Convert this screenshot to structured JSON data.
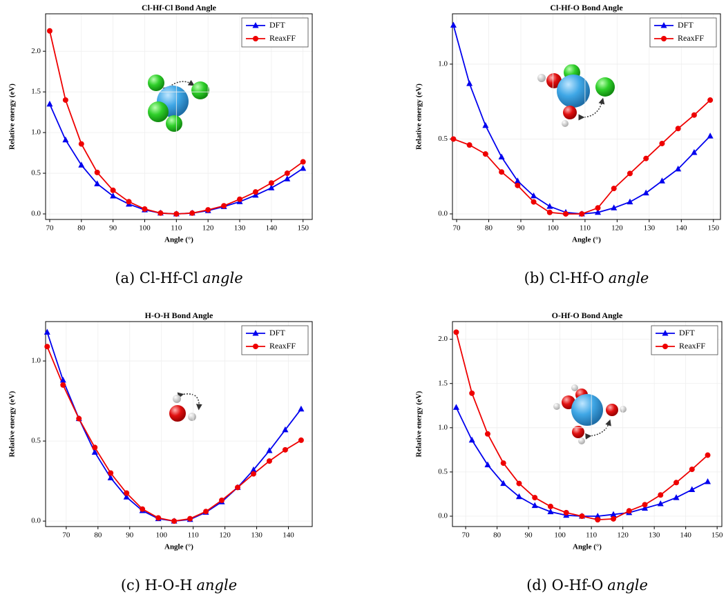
{
  "chart_data": [
    {
      "type": "line",
      "title": "Cl-Hf-Cl Bond Angle",
      "x_label": "Angle (°)",
      "y_label": "Relative energy (eV)",
      "caption": "(a) Cl-Hf-Cl",
      "caption_emphasis": "angle",
      "x": [
        70,
        75,
        80,
        85,
        90,
        95,
        100,
        105,
        110,
        115,
        120,
        125,
        130,
        135,
        140,
        145,
        150
      ],
      "series": [
        {
          "name": "DFT",
          "color": "#0000ee",
          "marker": "triangle",
          "values": [
            1.35,
            0.91,
            0.6,
            0.37,
            0.22,
            0.12,
            0.05,
            0.01,
            0.0,
            0.01,
            0.04,
            0.09,
            0.15,
            0.23,
            0.32,
            0.43,
            0.56
          ]
        },
        {
          "name": "ReaxFF",
          "color": "#ee0000",
          "marker": "circle",
          "values": [
            2.25,
            1.4,
            0.86,
            0.51,
            0.29,
            0.15,
            0.06,
            0.01,
            0.0,
            0.01,
            0.05,
            0.1,
            0.18,
            0.27,
            0.38,
            0.5,
            0.64
          ]
        }
      ],
      "xlim": [
        68.7,
        152.9
      ],
      "ylim": [
        -0.068,
        2.46
      ],
      "xticks": [
        70,
        80,
        90,
        100,
        110,
        120,
        130,
        140,
        150
      ],
      "yticks": [
        {
          "value": 0,
          "label": "0.0"
        },
        {
          "value": 0.5,
          "label": "0.5"
        },
        {
          "value": 1,
          "label": "1.0"
        },
        {
          "value": 1.5,
          "label": "1.5"
        },
        {
          "value": 2,
          "label": "2.0"
        }
      ],
      "grid": true,
      "legend": "upper right"
    },
    {
      "type": "line",
      "title": "Cl-Hf-O Bond Angle",
      "x_label": "Angle (°)",
      "y_label": "Relative energy (eV)",
      "caption": "(b) Cl-Hf-O",
      "caption_emphasis": "angle",
      "x": [
        69,
        74,
        79,
        84,
        89,
        94,
        99,
        104,
        109,
        114,
        119,
        124,
        129,
        134,
        139,
        144,
        149
      ],
      "series": [
        {
          "name": "DFT",
          "color": "#0000ee",
          "marker": "triangle",
          "values": [
            1.26,
            0.87,
            0.59,
            0.38,
            0.22,
            0.12,
            0.05,
            0.01,
            0.0,
            0.01,
            0.04,
            0.08,
            0.14,
            0.22,
            0.3,
            0.41,
            0.52
          ]
        },
        {
          "name": "ReaxFF",
          "color": "#ee0000",
          "marker": "circle",
          "values": [
            0.5,
            0.46,
            0.4,
            0.28,
            0.19,
            0.08,
            0.01,
            0.0,
            0.0,
            0.04,
            0.17,
            0.27,
            0.37,
            0.47,
            0.57,
            0.66,
            0.76
          ]
        }
      ],
      "xlim": [
        68.7,
        152.2
      ],
      "ylim": [
        -0.037,
        1.336
      ],
      "xticks": [
        70,
        80,
        90,
        100,
        110,
        120,
        130,
        140,
        150
      ],
      "yticks": [
        {
          "value": 0,
          "label": "0.0"
        },
        {
          "value": 0.5,
          "label": "0.5"
        },
        {
          "value": 1,
          "label": "1.0"
        }
      ],
      "grid": true,
      "legend": "upper right"
    },
    {
      "type": "line",
      "title": "H-O-H Bond Angle",
      "x_label": "Angle (°)",
      "y_label": "Relative energy (eV)",
      "caption": "(c) H-O-H",
      "caption_emphasis": "angle",
      "x": [
        64,
        69,
        74,
        79,
        84,
        89,
        94,
        99,
        104,
        109,
        114,
        119,
        124,
        129,
        134,
        139,
        144
      ],
      "series": [
        {
          "name": "DFT",
          "color": "#0000ee",
          "marker": "triangle",
          "values": [
            1.18,
            0.88,
            0.64,
            0.43,
            0.27,
            0.15,
            0.065,
            0.015,
            0.0,
            0.01,
            0.055,
            0.12,
            0.21,
            0.32,
            0.44,
            0.57,
            0.7
          ]
        },
        {
          "name": "ReaxFF",
          "color": "#ee0000",
          "marker": "circle",
          "values": [
            1.09,
            0.85,
            0.64,
            0.46,
            0.3,
            0.175,
            0.075,
            0.02,
            0.0,
            0.015,
            0.06,
            0.13,
            0.21,
            0.295,
            0.375,
            0.445,
            0.505
          ]
        }
      ],
      "xlim": [
        63.5,
        147.5
      ],
      "ylim": [
        -0.034,
        1.246
      ],
      "xticks": [
        70,
        80,
        90,
        100,
        110,
        120,
        130,
        140
      ],
      "yticks": [
        {
          "value": 0,
          "label": "0.0"
        },
        {
          "value": 0.5,
          "label": "0.5"
        },
        {
          "value": 1,
          "label": "1.0"
        }
      ],
      "grid": true,
      "legend": "upper right"
    },
    {
      "type": "line",
      "title": "O-Hf-O Bond Angle",
      "x_label": "Angle (°)",
      "y_label": "Relative energy (eV)",
      "caption": "(d) O-Hf-O",
      "caption_emphasis": "angle",
      "x": [
        67,
        72,
        77,
        82,
        87,
        92,
        97,
        102,
        107,
        112,
        117,
        122,
        127,
        132,
        137,
        142,
        147
      ],
      "series": [
        {
          "name": "DFT",
          "color": "#0000ee",
          "marker": "triangle",
          "values": [
            1.23,
            0.86,
            0.58,
            0.37,
            0.22,
            0.12,
            0.05,
            0.01,
            0.0,
            0.0,
            0.02,
            0.04,
            0.09,
            0.14,
            0.21,
            0.3,
            0.39
          ]
        },
        {
          "name": "ReaxFF",
          "color": "#ee0000",
          "marker": "circle",
          "values": [
            2.08,
            1.39,
            0.93,
            0.6,
            0.37,
            0.21,
            0.11,
            0.04,
            0.0,
            -0.04,
            -0.03,
            0.06,
            0.13,
            0.24,
            0.38,
            0.53,
            0.69
          ]
        }
      ],
      "xlim": [
        65.8,
        151.5
      ],
      "ylim": [
        -0.117,
        2.2
      ],
      "xticks": [
        70,
        80,
        90,
        100,
        110,
        120,
        130,
        140,
        150
      ],
      "yticks": [
        {
          "value": 0,
          "label": "0.0"
        },
        {
          "value": 0.5,
          "label": "0.5"
        },
        {
          "value": 1,
          "label": "1.0"
        },
        {
          "value": 1.5,
          "label": "1.5"
        },
        {
          "value": 2,
          "label": "2.0"
        }
      ],
      "grid": true,
      "legend": "upper right"
    }
  ]
}
